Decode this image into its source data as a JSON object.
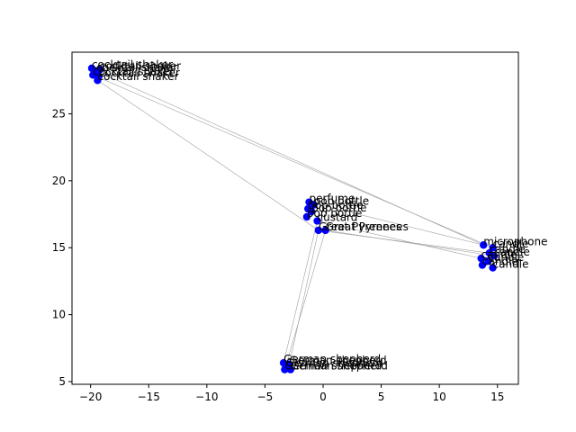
{
  "chart_data": {
    "type": "scatter",
    "title": "",
    "xlabel": "",
    "ylabel": "",
    "xlim": [
      -21.6,
      16.8
    ],
    "ylim": [
      4.8,
      29.6
    ],
    "xticks": [
      -20,
      -15,
      -10,
      -5,
      0,
      5,
      10,
      15
    ],
    "yticks": [
      5,
      10,
      15,
      20,
      25
    ],
    "grid": false,
    "colors": {
      "points": "#0000ff",
      "edges": "#a0a0a0",
      "axes": "#000000"
    },
    "points": [
      {
        "x": -19.9,
        "y": 28.4,
        "label": "cocktail shaker"
      },
      {
        "x": -19.5,
        "y": 28.2,
        "label": "cocktail shaker"
      },
      {
        "x": -19.2,
        "y": 28.3,
        "label": "cocktail shaker"
      },
      {
        "x": -19.8,
        "y": 27.9,
        "label": "cocktail shaker"
      },
      {
        "x": -19.3,
        "y": 27.8,
        "label": "cocktail shaker"
      },
      {
        "x": -19.4,
        "y": 27.5,
        "label": "cocktail shaker"
      },
      {
        "x": -1.2,
        "y": 18.4,
        "label": "perfume"
      },
      {
        "x": -0.8,
        "y": 18.2,
        "label": "pop bottle"
      },
      {
        "x": -1.3,
        "y": 17.9,
        "label": "pop bottle"
      },
      {
        "x": -1.0,
        "y": 17.7,
        "label": "pop bottle"
      },
      {
        "x": -1.4,
        "y": 17.3,
        "label": "pop bottle"
      },
      {
        "x": -0.5,
        "y": 17.0,
        "label": "custard"
      },
      {
        "x": -0.4,
        "y": 16.3,
        "label": "Great Pyrenees"
      },
      {
        "x": 0.2,
        "y": 16.3,
        "label": "Great Pyrenees"
      },
      {
        "x": 13.8,
        "y": 15.2,
        "label": "microphone"
      },
      {
        "x": 14.6,
        "y": 15.0,
        "label": "candle"
      },
      {
        "x": 14.3,
        "y": 14.6,
        "label": "candle"
      },
      {
        "x": 14.7,
        "y": 14.4,
        "label": "candle"
      },
      {
        "x": 13.6,
        "y": 14.2,
        "label": "candle"
      },
      {
        "x": 14.2,
        "y": 14.0,
        "label": "candle"
      },
      {
        "x": 13.7,
        "y": 13.7,
        "label": "candle"
      },
      {
        "x": 14.6,
        "y": 13.5,
        "label": "candle"
      },
      {
        "x": -3.4,
        "y": 6.4,
        "label": "German shepherd"
      },
      {
        "x": -2.9,
        "y": 6.3,
        "label": "German shepherd"
      },
      {
        "x": -3.2,
        "y": 6.1,
        "label": "German shepherd"
      },
      {
        "x": -3.3,
        "y": 5.9,
        "label": "German shepherd"
      },
      {
        "x": -2.8,
        "y": 5.9,
        "label": "German shepherd"
      }
    ],
    "edges": [
      [
        5,
        12
      ],
      [
        3,
        15
      ],
      [
        1,
        14
      ],
      [
        12,
        16
      ],
      [
        6,
        14
      ],
      [
        11,
        18
      ],
      [
        13,
        17
      ],
      [
        23,
        12
      ],
      [
        25,
        13
      ],
      [
        22,
        11
      ]
    ]
  }
}
